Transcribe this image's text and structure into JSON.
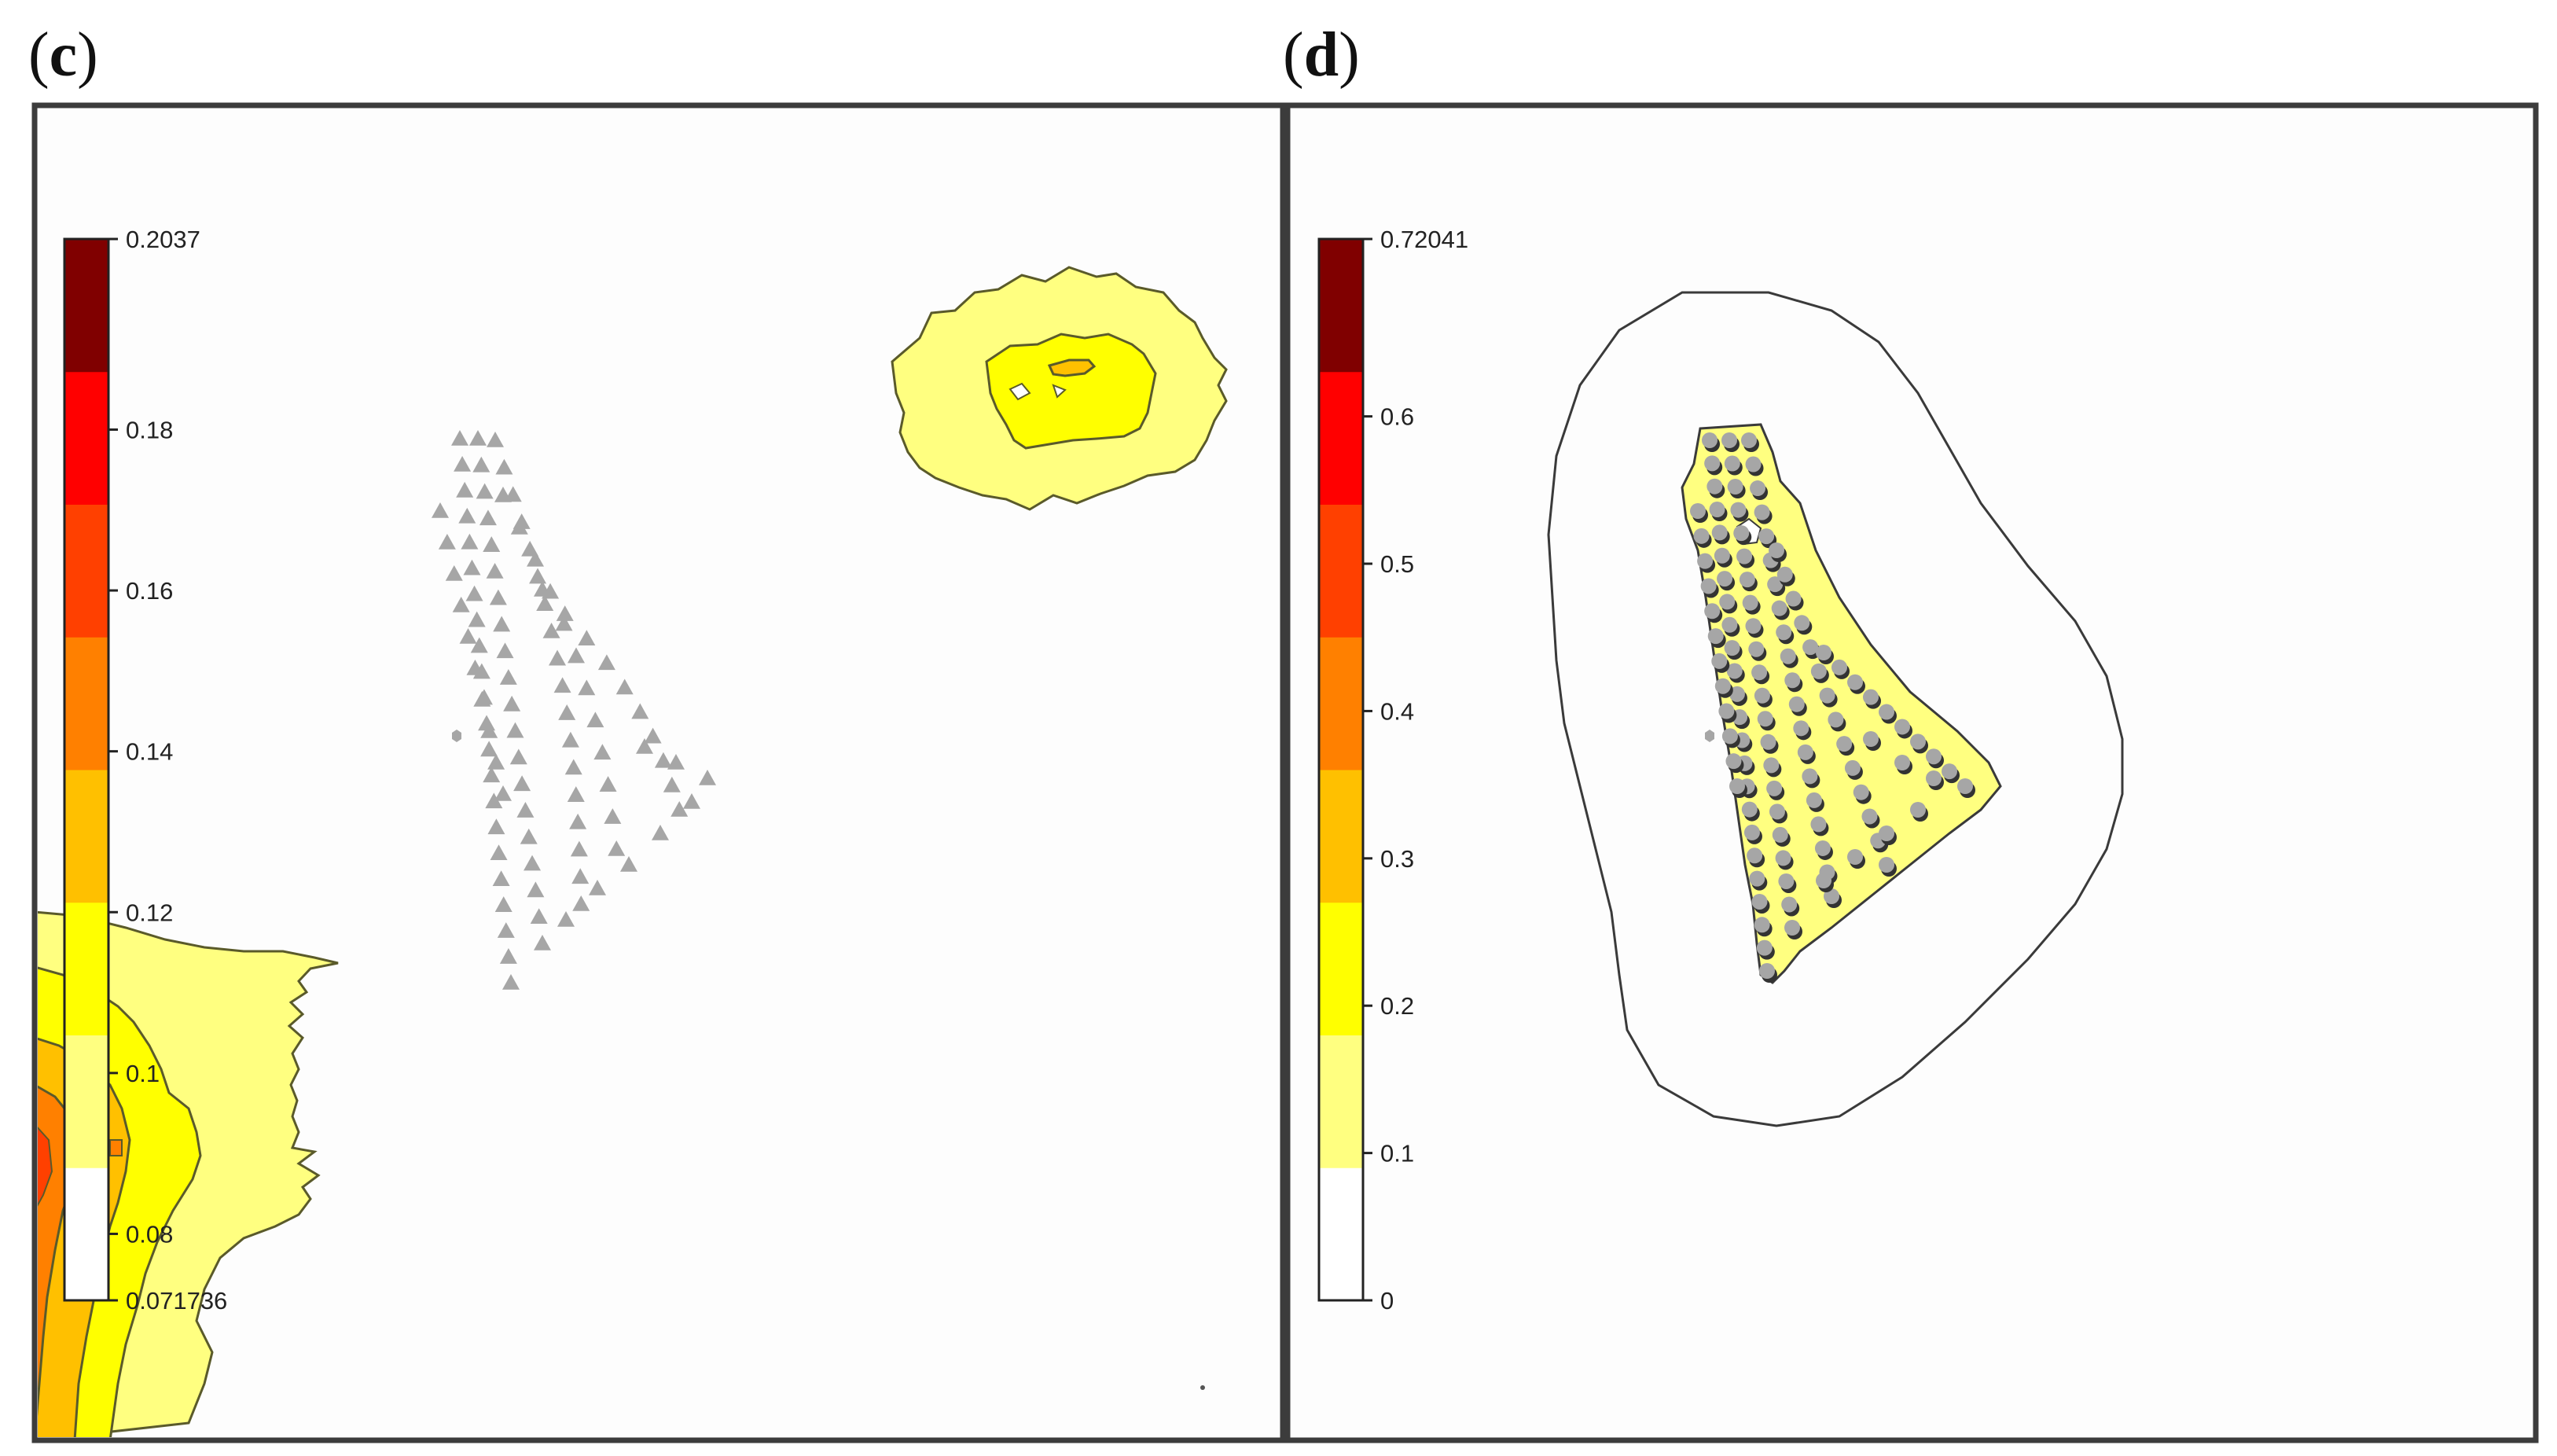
{
  "panels": [
    {
      "label_open": "(",
      "label_letter": "c",
      "label_close": ")",
      "chart_data": {
        "type": "heatmap",
        "title": "",
        "colorbar": {
          "min_label": "0.071736",
          "max_label": "0.2037",
          "tick_labels": [
            "0.2037",
            "0.18",
            "0.16",
            "0.14",
            "0.12",
            "0.1",
            "0.08",
            "0.071736"
          ],
          "tick_values": [
            0.2037,
            0.18,
            0.16,
            0.14,
            0.12,
            0.1,
            0.08,
            0.071736
          ],
          "range": [
            0.071736,
            0.2037
          ],
          "colors": [
            "#ffffff",
            "#ffff80",
            "#ffff00",
            "#ffc000",
            "#ff8000",
            "#ff4000",
            "#ff0000",
            "#800000"
          ]
        },
        "markers": {
          "shape": "triangle",
          "color": "#a6a6a6",
          "count": 90,
          "extra_hexagon": 1
        }
      }
    },
    {
      "label_open": "(",
      "label_letter": "d",
      "label_close": ")",
      "chart_data": {
        "type": "heatmap",
        "title": "",
        "colorbar": {
          "min_label": "0",
          "max_label": "0.72041",
          "tick_labels": [
            "0.72041",
            "0.6",
            "0.5",
            "0.4",
            "0.3",
            "0.2",
            "0.1",
            "0"
          ],
          "tick_values": [
            0.72041,
            0.6,
            0.5,
            0.4,
            0.3,
            0.2,
            0.1,
            0
          ],
          "range": [
            0,
            0.72041
          ],
          "colors": [
            "#ffffff",
            "#ffff80",
            "#ffff00",
            "#ffc000",
            "#ff8000",
            "#ff4000",
            "#ff0000",
            "#800000"
          ]
        },
        "markers": {
          "shape": "circle",
          "color": "#a6a6a6",
          "count": 110,
          "extra_hexagon": 1
        }
      }
    }
  ]
}
